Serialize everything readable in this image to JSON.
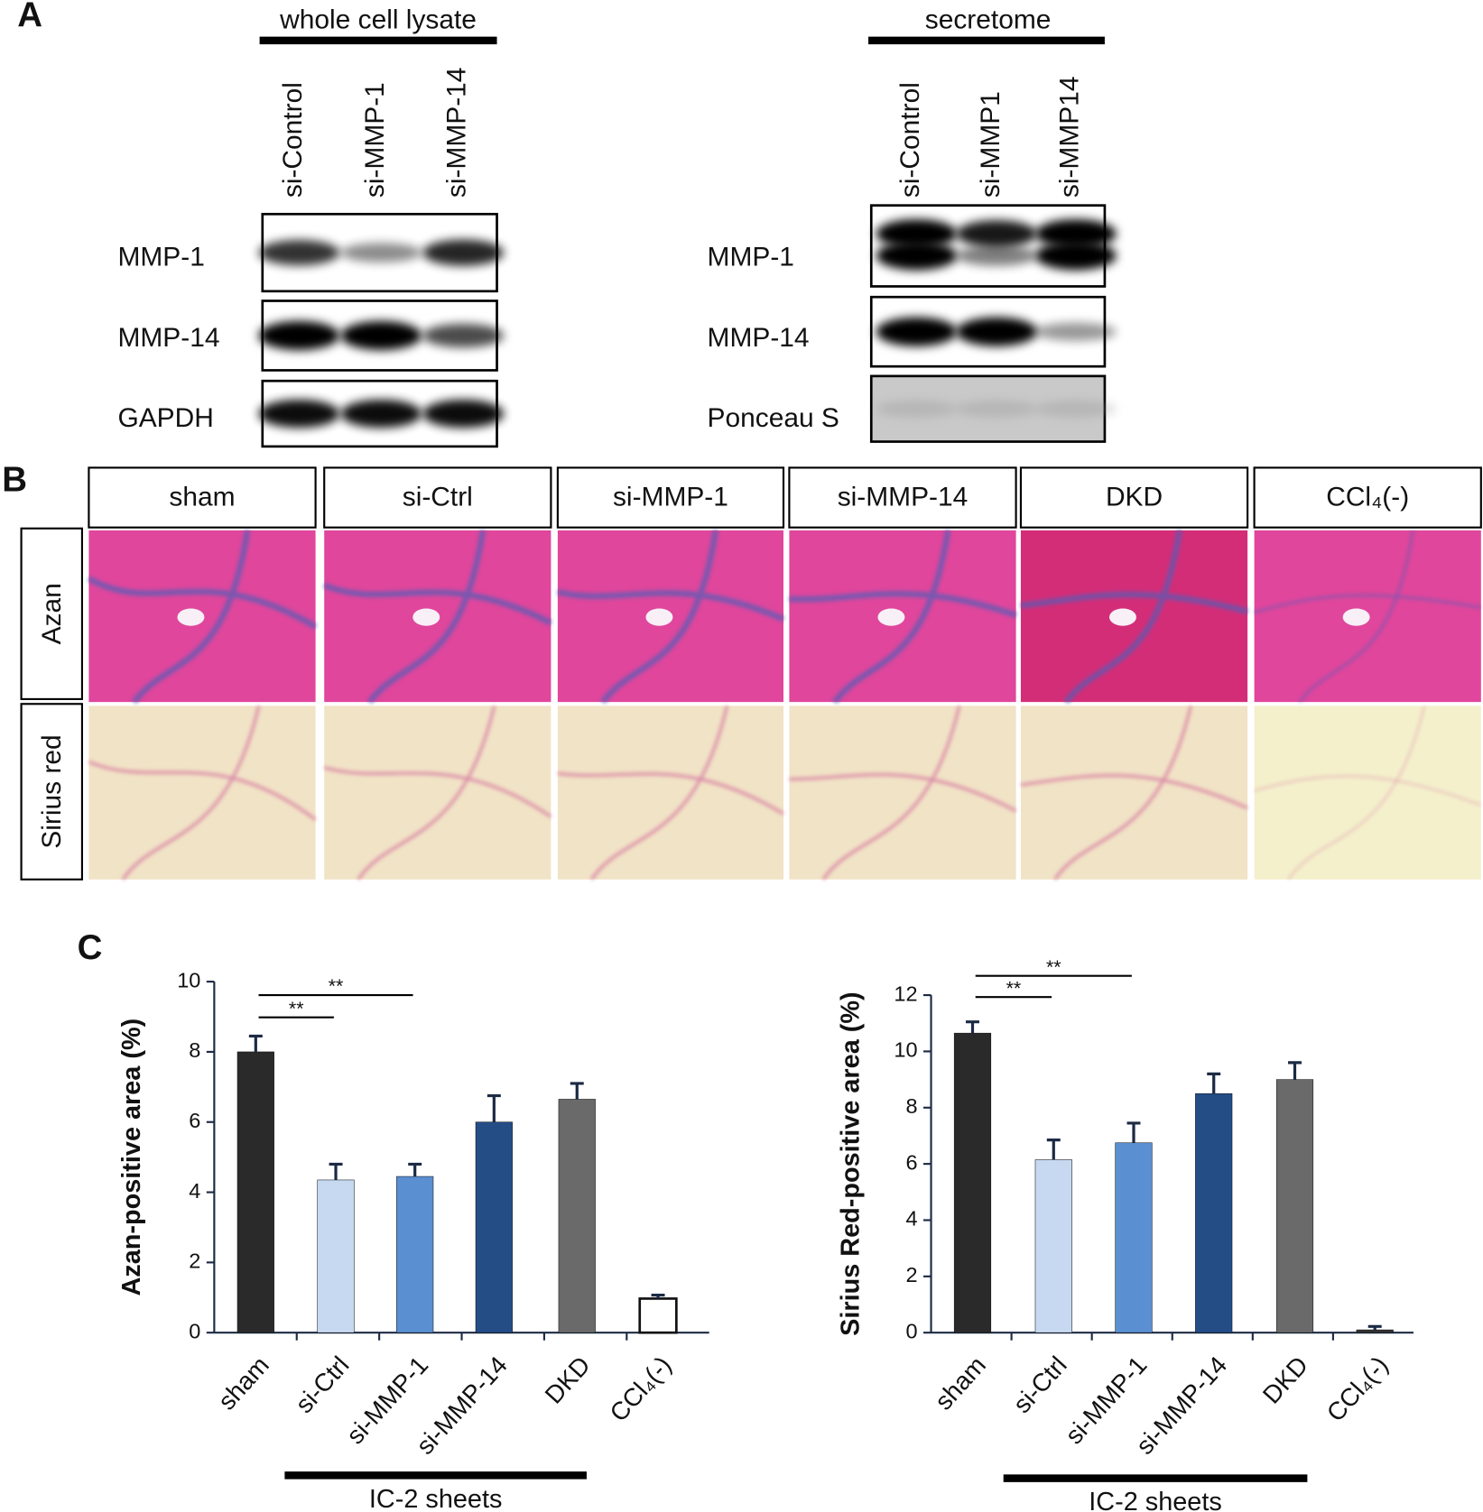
{
  "panel_labels": [
    "A",
    "B",
    "C"
  ],
  "blots": [
    {
      "title": "whole cell lysate",
      "lanes": [
        "si-Control",
        "si-MMP-1",
        "si-MMP-14"
      ],
      "rows": [
        "MMP-1",
        "MMP-14",
        "GAPDH"
      ]
    },
    {
      "title": "secretome",
      "lanes": [
        "si-Control",
        "si-MMP1",
        "si-MMP14"
      ],
      "rows": [
        "MMP-1",
        "MMP-14",
        "Ponceau S"
      ]
    }
  ],
  "histology": {
    "columns": [
      "sham",
      "si-Ctrl",
      "si-MMP-1",
      "si-MMP-14",
      "DKD",
      "CCl₄(-)"
    ],
    "rows": [
      "Azan",
      "Sirius red"
    ]
  },
  "chart_data": [
    {
      "type": "bar",
      "y_label": "Azan-positive area (%)",
      "categories": [
        "sham",
        "si-Ctrl",
        "si-MMP-1",
        "si-MMP-14",
        "DKD",
        "CCl₄(-)"
      ],
      "values": [
        8.0,
        4.35,
        4.45,
        6.0,
        6.65,
        0.97
      ],
      "errors": [
        0.45,
        0.45,
        0.35,
        0.75,
        0.45,
        0.1
      ],
      "colors": [
        "#2a2a2a",
        "#c6d9f0",
        "#5a8fd2",
        "#244d86",
        "#6a6a6a",
        "#ffffff"
      ],
      "ylim": [
        0,
        10
      ],
      "yticks": [
        0,
        2,
        4,
        6,
        8,
        10
      ],
      "annotations": [
        {
          "text": "**",
          "from": "sham",
          "to": "si-Ctrl"
        },
        {
          "text": "**",
          "from": "sham",
          "to": "si-MMP-1"
        }
      ],
      "group_label": "IC-2 sheets"
    },
    {
      "type": "bar",
      "y_label": "Sirius Red-positive area (%)",
      "categories": [
        "sham",
        "si-Ctrl",
        "si-MMP-1",
        "si-MMP-14",
        "DKD",
        "CCl₄(-)"
      ],
      "values": [
        10.65,
        6.15,
        6.75,
        8.5,
        9.0,
        0.1
      ],
      "errors": [
        0.4,
        0.7,
        0.7,
        0.7,
        0.6,
        0.12
      ],
      "colors": [
        "#2a2a2a",
        "#c6d9f0",
        "#5a8fd2",
        "#244d86",
        "#6a6a6a",
        "#333333"
      ],
      "ylim": [
        0,
        12
      ],
      "yticks": [
        0,
        2,
        4,
        6,
        8,
        10,
        12
      ],
      "annotations": [
        {
          "text": "**",
          "from": "sham",
          "to": "si-Ctrl"
        },
        {
          "text": "**",
          "from": "sham",
          "to": "si-MMP-1"
        }
      ],
      "group_label": "IC-2 sheets"
    }
  ]
}
